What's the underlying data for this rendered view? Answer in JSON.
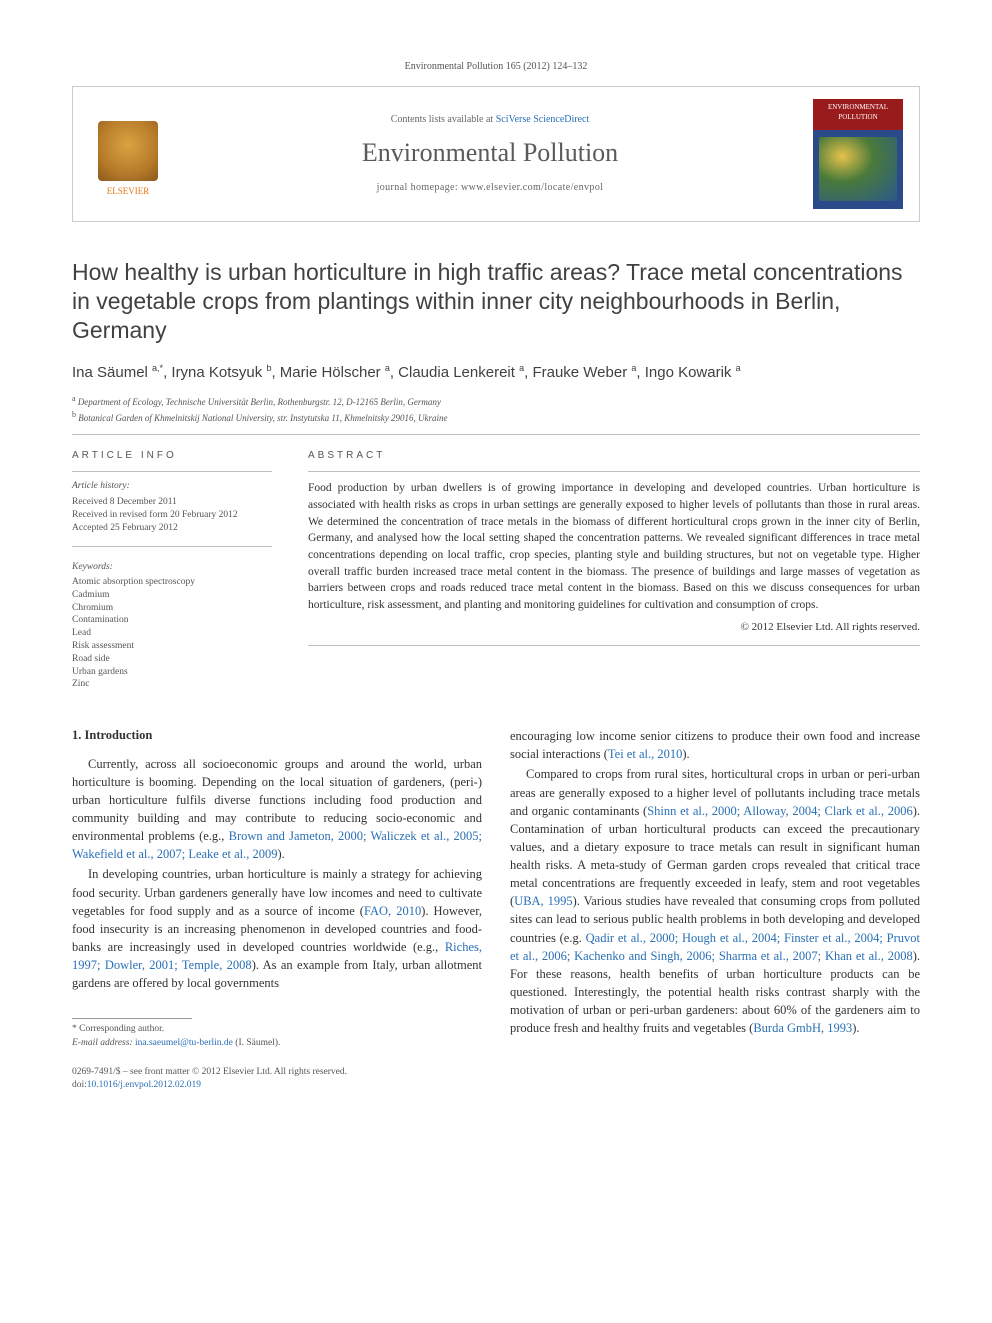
{
  "running_head": "Environmental Pollution 165 (2012) 124–132",
  "masthead": {
    "publisher": "ELSEVIER",
    "contents_prefix": "Contents lists available at ",
    "contents_link": "SciVerse ScienceDirect",
    "journal": "Environmental Pollution",
    "homepage_prefix": "journal homepage: ",
    "homepage_url": "www.elsevier.com/locate/envpol",
    "cover_label": "ENVIRONMENTAL POLLUTION"
  },
  "article": {
    "title": "How healthy is urban horticulture in high traffic areas? Trace metal concentrations in vegetable crops from plantings within inner city neighbourhoods in Berlin, Germany",
    "authors_html": "Ina Säumel <sup>a,*</sup>, Iryna Kotsyuk <sup>b</sup>, Marie Hölscher <sup>a</sup>, Claudia Lenkereit <sup>a</sup>, Frauke Weber <sup>a</sup>, Ingo Kowarik <sup>a</sup>",
    "affiliations": {
      "a": "Department of Ecology, Technische Universität Berlin, Rothenburgstr. 12, D-12165 Berlin, Germany",
      "b": "Botanical Garden of Khmelnitskij National University, str. Instytutska 11, Khmelnitsky 29016, Ukraine"
    }
  },
  "article_info": {
    "heading": "ARTICLE INFO",
    "history_label": "Article history:",
    "received": "Received 8 December 2011",
    "revised": "Received in revised form 20 February 2012",
    "accepted": "Accepted 25 February 2012",
    "keywords_label": "Keywords:",
    "keywords": [
      "Atomic absorption spectroscopy",
      "Cadmium",
      "Chromium",
      "Contamination",
      "Lead",
      "Risk assessment",
      "Road side",
      "Urban gardens",
      "Zinc"
    ]
  },
  "abstract": {
    "heading": "ABSTRACT",
    "body": "Food production by urban dwellers is of growing importance in developing and developed countries. Urban horticulture is associated with health risks as crops in urban settings are generally exposed to higher levels of pollutants than those in rural areas. We determined the concentration of trace metals in the biomass of different horticultural crops grown in the inner city of Berlin, Germany, and analysed how the local setting shaped the concentration patterns. We revealed significant differences in trace metal concentrations depending on local traffic, crop species, planting style and building structures, but not on vegetable type. Higher overall traffic burden increased trace metal content in the biomass. The presence of buildings and large masses of vegetation as barriers between crops and roads reduced trace metal content in the biomass. Based on this we discuss consequences for urban horticulture, risk assessment, and planting and monitoring guidelines for cultivation and consumption of crops.",
    "copyright": "© 2012 Elsevier Ltd. All rights reserved."
  },
  "body": {
    "section1_head": "1. Introduction",
    "p1": "Currently, across all socioeconomic groups and around the world, urban horticulture is booming. Depending on the local situation of gardeners, (peri-) urban horticulture fulfils diverse functions including food production and community building and may contribute to reducing socio-economic and environmental problems (e.g., ",
    "p1_refs": "Brown and Jameton, 2000; Waliczek et al., 2005; Wakefield et al., 2007; Leake et al., 2009",
    "p1_end": ").",
    "p2a": "In developing countries, urban horticulture is mainly a strategy for achieving food security. Urban gardeners generally have low incomes and need to cultivate vegetables for food supply and as a source of income (",
    "p2a_ref": "FAO, 2010",
    "p2b": "). However, food insecurity is an increasing phenomenon in developed countries and food-banks are increasingly used in developed countries worldwide (e.g., ",
    "p2b_ref": "Riches, 1997; Dowler, 2001; Temple, 2008",
    "p2c": "). As an example from Italy, urban allotment gardens are offered by local governments ",
    "p3a": "encouraging low income senior citizens to produce their own food and increase social interactions (",
    "p3a_ref": "Tei et al., 2010",
    "p3b": ").",
    "p4a": "Compared to crops from rural sites, horticultural crops in urban or peri-urban areas are generally exposed to a higher level of pollutants including trace metals and organic contaminants (",
    "p4a_ref": "Shinn et al., 2000; Alloway, 2004; Clark et al., 2006",
    "p4b": "). Contamination of urban horticultural products can exceed the precautionary values, and a dietary exposure to trace metals can result in significant human health risks. A meta-study of German garden crops revealed that critical trace metal concentrations are frequently exceeded in leafy, stem and root vegetables (",
    "p4b_ref": "UBA, 1995",
    "p4c": "). Various studies have revealed that consuming crops from polluted sites can lead to serious public health problems in both developing and developed countries (e.g. ",
    "p4c_ref": "Qadir et al., 2000; Hough et al., 2004; Finster et al., 2004; Pruvot et al., 2006; Kachenko and Singh, 2006; Sharma et al., 2007; Khan et al., 2008",
    "p4d": "). For these reasons, health benefits of urban horticulture products can be questioned. Interestingly, the potential health risks contrast sharply with the motivation of urban or peri-urban gardeners: about 60% of the gardeners aim to produce fresh and healthy fruits and vegetables (",
    "p4d_ref": "Burda GmbH, 1993",
    "p4e": ")."
  },
  "footnote": {
    "corresponding": "* Corresponding author.",
    "email_label": "E-mail address: ",
    "email": "ina.saeumel@tu-berlin.de",
    "email_person": " (I. Säumel)."
  },
  "footer": {
    "line1": "0269-7491/$ – see front matter © 2012 Elsevier Ltd. All rights reserved.",
    "doi_label": "doi:",
    "doi": "10.1016/j.envpol.2012.02.019"
  },
  "colors": {
    "link": "#2a6fb5",
    "text": "#333333",
    "muted": "#555555",
    "rule": "#bfbfbf",
    "publisher": "#e67817"
  }
}
